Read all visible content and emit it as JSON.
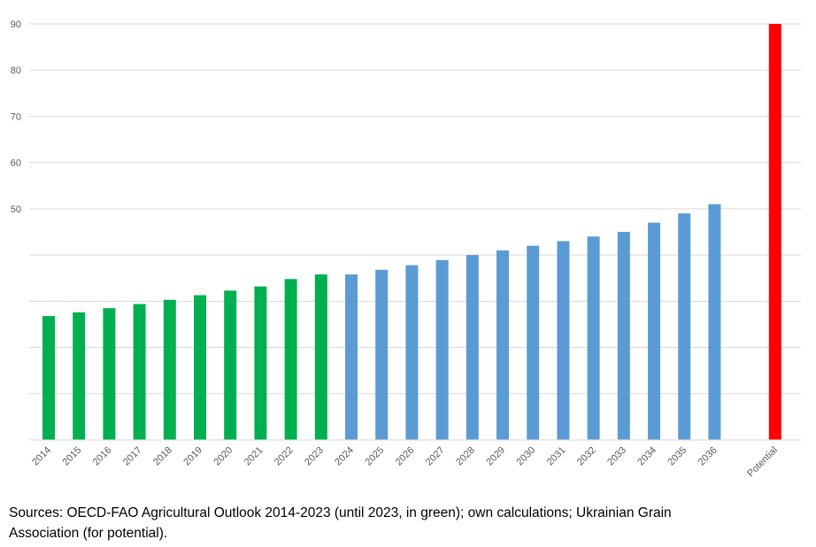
{
  "chart_data": {
    "type": "bar",
    "title": "",
    "xlabel": "",
    "ylabel": "",
    "ylim": [
      0,
      90
    ],
    "yticks": [
      0,
      10,
      20,
      30,
      40,
      50,
      60,
      70,
      80,
      90
    ],
    "ytick_labels": [
      "",
      "",
      "",
      "",
      "",
      "50",
      "60",
      "70",
      "80",
      "90"
    ],
    "grid": true,
    "categories": [
      "2014",
      "2015",
      "2016",
      "2017",
      "2018",
      "2019",
      "2020",
      "2021",
      "2022",
      "2023",
      "2024",
      "2025",
      "2026",
      "2027",
      "2028",
      "2029",
      "2030",
      "2031",
      "2032",
      "2033",
      "2034",
      "2035",
      "2036",
      "",
      "Potential"
    ],
    "values": [
      26.8,
      27.6,
      28.5,
      29.4,
      30.3,
      31.3,
      32.3,
      33.2,
      34.8,
      35.8,
      35.8,
      36.8,
      37.8,
      38.9,
      40.0,
      41.0,
      42.0,
      43.0,
      44.0,
      45.0,
      47.0,
      49.0,
      51.0,
      null,
      90.0
    ],
    "series": [
      {
        "name": "OECD-FAO (until 2023)",
        "color": "#00b050",
        "from": "2014",
        "to": "2023"
      },
      {
        "name": "Own calculations",
        "color": "#5b9bd5",
        "from": "2024",
        "to": "2036"
      },
      {
        "name": "Potential",
        "color": "#ff0000",
        "from": "Potential",
        "to": "Potential"
      }
    ],
    "bar_colors": [
      "#00b050",
      "#00b050",
      "#00b050",
      "#00b050",
      "#00b050",
      "#00b050",
      "#00b050",
      "#00b050",
      "#00b050",
      "#00b050",
      "#5b9bd5",
      "#5b9bd5",
      "#5b9bd5",
      "#5b9bd5",
      "#5b9bd5",
      "#5b9bd5",
      "#5b9bd5",
      "#5b9bd5",
      "#5b9bd5",
      "#5b9bd5",
      "#5b9bd5",
      "#5b9bd5",
      "#5b9bd5",
      "#ffffff",
      "#ff0000"
    ]
  },
  "caption": {
    "line1": "Sources: OECD-FAO Agricultural Outlook 2014-2023 (until 2023, in green); own calculations; Ukrainian Grain",
    "line2": "Association (for potential)."
  }
}
